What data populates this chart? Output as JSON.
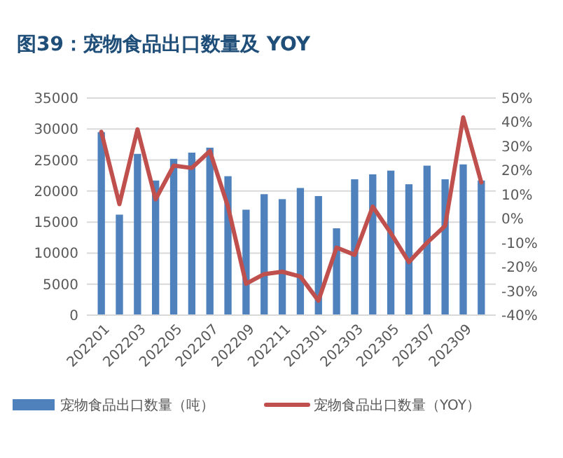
{
  "chart_data": {
    "type": "bar",
    "title": "图39：宠物食品出口数量及 YOY",
    "categories": [
      "202201",
      null,
      "202203",
      null,
      "202205",
      null,
      "202207",
      null,
      "202209",
      null,
      "202211",
      null,
      "202301",
      null,
      "202303",
      null,
      "202305",
      null,
      "202307",
      null,
      "202309",
      null
    ],
    "series": [
      {
        "name": "宠物食品出口数量（吨）",
        "color": "#4f81bd",
        "values": [
          29500,
          16200,
          26000,
          21700,
          25200,
          26200,
          27000,
          22400,
          17000,
          19500,
          18700,
          20500,
          19200,
          14000,
          21900,
          22700,
          23300,
          21100,
          24100,
          21900,
          24300,
          21700
        ]
      },
      {
        "name": "宠物食品出口数量（YOY）",
        "type": "line",
        "axis": "y2",
        "color": "#c0504d",
        "values": [
          36,
          6,
          37,
          8,
          22,
          21,
          28,
          5,
          -27,
          -23,
          -22,
          -24,
          -34,
          -12,
          -15,
          5,
          -6,
          -18,
          -10,
          -3,
          42,
          15
        ]
      }
    ],
    "ylim": [
      0,
      35000
    ],
    "yticks": [
      0,
      5000,
      10000,
      15000,
      20000,
      25000,
      30000,
      35000
    ],
    "y2lim": [
      -40,
      50
    ],
    "y2ticks": [
      {
        "value": -40,
        "label": "-40%"
      },
      {
        "value": -30,
        "label": "-30%"
      },
      {
        "value": -20,
        "label": "-20%"
      },
      {
        "value": -10,
        "label": "-10%"
      },
      {
        "value": 0,
        "label": "0%"
      },
      {
        "value": 10,
        "label": "10%"
      },
      {
        "value": 20,
        "label": "20%"
      },
      {
        "value": 30,
        "label": "30%"
      },
      {
        "value": 40,
        "label": "40%"
      },
      {
        "value": 50,
        "label": "50%"
      }
    ],
    "grid": "y",
    "legend": "bottom",
    "marker": "none"
  }
}
